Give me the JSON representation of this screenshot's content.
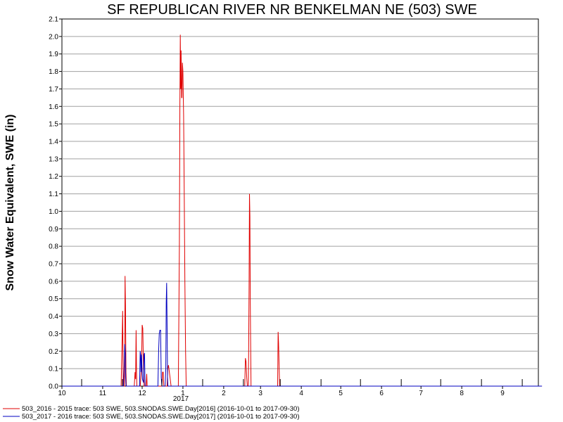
{
  "chart_data": {
    "type": "line",
    "title": "SF REPUBLICAN RIVER NR BENKELMAN NE (503) SWE",
    "ylabel": "Snow Water Equivalent, SWE (in)",
    "xlabel": "",
    "ylim": [
      0,
      2.1
    ],
    "y_ticks": [
      "0.0",
      "0.1",
      "0.2",
      "0.3",
      "0.4",
      "0.5",
      "0.6",
      "0.7",
      "0.8",
      "0.9",
      "1.0",
      "1.1",
      "1.2",
      "1.3",
      "1.4",
      "1.5",
      "1.6",
      "1.7",
      "1.8",
      "1.9",
      "2.0",
      "2.1"
    ],
    "x_ticks": [
      "10",
      "11",
      "12",
      "1",
      "2",
      "3",
      "4",
      "5",
      "6",
      "7",
      "8",
      "9"
    ],
    "x_year_label": "2017",
    "grid": "horizontal",
    "legend_position": "bottom-left",
    "series": [
      {
        "name": "503_2016 - 2015 trace: 503 SWE, 503.SNODAS.SWE.Day[2016] (2016-10-01 to 2017-09-30)",
        "color": "#e00000",
        "points": [
          [
            0,
            0
          ],
          [
            45,
            0
          ],
          [
            45.9,
            0.32
          ],
          [
            46.2,
            0.43
          ],
          [
            46.6,
            0
          ],
          [
            47.6,
            0
          ],
          [
            47.8,
            0.22
          ],
          [
            48,
            0.63
          ],
          [
            48.3,
            0.47
          ],
          [
            48.7,
            0.08
          ],
          [
            49,
            0
          ],
          [
            55,
            0
          ],
          [
            55.6,
            0.08
          ],
          [
            56,
            0.04
          ],
          [
            56.4,
            0.32
          ],
          [
            56.7,
            0.08
          ],
          [
            57,
            0
          ],
          [
            59.5,
            0
          ],
          [
            60.5,
            0.1
          ],
          [
            61,
            0.35
          ],
          [
            61.5,
            0.33
          ],
          [
            62,
            0.1
          ],
          [
            62.5,
            0
          ],
          [
            64,
            0
          ],
          [
            64.5,
            0.07
          ],
          [
            64.8,
            0
          ],
          [
            76,
            0
          ],
          [
            76.5,
            0.08
          ],
          [
            77,
            0.08
          ],
          [
            77.5,
            0
          ],
          [
            80,
            0
          ],
          [
            80.5,
            0.1
          ],
          [
            81,
            0.12
          ],
          [
            82.5,
            0.03
          ],
          [
            83,
            0
          ],
          [
            88.5,
            0
          ],
          [
            89.3,
            0.8
          ],
          [
            89.7,
            1.6
          ],
          [
            90,
            2.01
          ],
          [
            90.3,
            1.7
          ],
          [
            90.6,
            1.92
          ],
          [
            91,
            1.65
          ],
          [
            91.3,
            1.65
          ],
          [
            91.6,
            1.85
          ],
          [
            92,
            1.8
          ],
          [
            92.5,
            1.55
          ],
          [
            93,
            1.1
          ],
          [
            93.5,
            0.6
          ],
          [
            94,
            0.2
          ],
          [
            94.5,
            0
          ],
          [
            139,
            0
          ],
          [
            139.5,
            0.16
          ],
          [
            140,
            0.14
          ],
          [
            140.5,
            0.05
          ],
          [
            141,
            0
          ],
          [
            141.8,
            0
          ],
          [
            142.3,
            0.55
          ],
          [
            142.6,
            1.1
          ],
          [
            142.9,
            0.97
          ],
          [
            143.2,
            0.5
          ],
          [
            143.8,
            0
          ],
          [
            164,
            0
          ],
          [
            164.4,
            0.31
          ],
          [
            164.7,
            0.25
          ],
          [
            165,
            0.15
          ],
          [
            165.5,
            0
          ],
          [
            365,
            0
          ]
        ]
      },
      {
        "name": "503_2017 - 2016 trace: 503 SWE, 503.SNODAS.SWE.Day[2017] (2016-10-01 to 2017-09-30)",
        "color": "#0000c0",
        "points": [
          [
            0,
            0
          ],
          [
            46.8,
            0
          ],
          [
            47.3,
            0.1
          ],
          [
            47.8,
            0.24
          ],
          [
            48.2,
            0.18
          ],
          [
            48.5,
            0.05
          ],
          [
            48.8,
            0
          ],
          [
            59,
            0
          ],
          [
            59.5,
            0.2
          ],
          [
            59.8,
            0.18
          ],
          [
            60.1,
            0.08
          ],
          [
            60.5,
            0.18
          ],
          [
            60.8,
            0.12
          ],
          [
            61.2,
            0.04
          ],
          [
            62,
            0.02
          ],
          [
            62.4,
            0.18
          ],
          [
            62.8,
            0.19
          ],
          [
            63.2,
            0
          ],
          [
            73,
            0
          ],
          [
            73.5,
            0.2
          ],
          [
            74,
            0.3
          ],
          [
            74.5,
            0.32
          ],
          [
            75,
            0.32
          ],
          [
            75.5,
            0.05
          ],
          [
            76,
            0
          ],
          [
            78.5,
            0
          ],
          [
            79,
            0.1
          ],
          [
            79.3,
            0.48
          ],
          [
            79.6,
            0.59
          ],
          [
            79.9,
            0.4
          ],
          [
            80.3,
            0.05
          ],
          [
            80.6,
            0
          ],
          [
            365,
            0
          ]
        ]
      }
    ]
  }
}
